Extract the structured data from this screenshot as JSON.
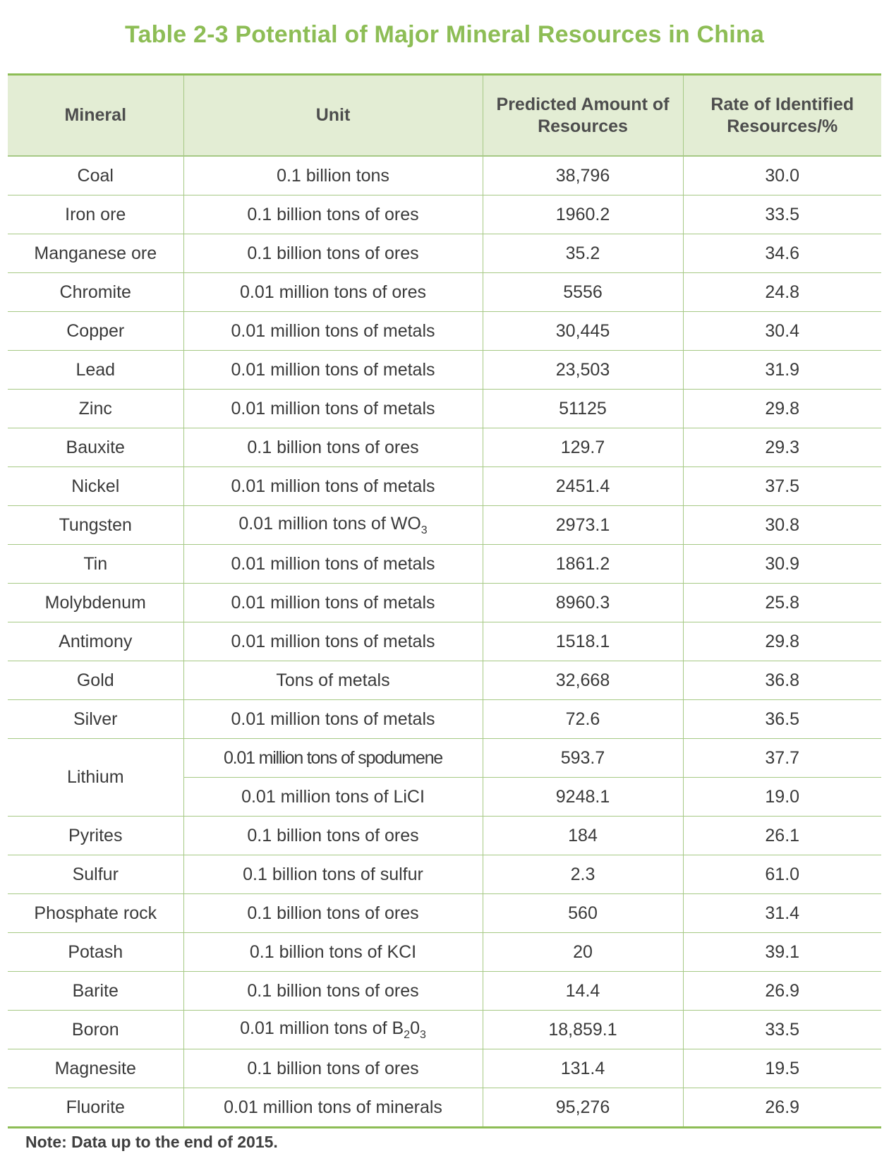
{
  "title": "Table 2-3 Potential of Major Mineral Resources in China",
  "headers": {
    "mineral": "Mineral",
    "unit": "Unit",
    "predicted": "Predicted Amount of Resources",
    "rate": "Rate of Identified Resources/%"
  },
  "rows": [
    {
      "mineral": "Coal",
      "unit": "0.1 billion tons",
      "predicted": "38,796",
      "rate": "30.0"
    },
    {
      "mineral": "Iron ore",
      "unit": "0.1 billion tons of ores",
      "predicted": "1960.2",
      "rate": "33.5"
    },
    {
      "mineral": "Manganese ore",
      "unit": "0.1 billion tons of ores",
      "predicted": "35.2",
      "rate": "34.6"
    },
    {
      "mineral": "Chromite",
      "unit": "0.01 million tons of ores",
      "predicted": "5556",
      "rate": "24.8"
    },
    {
      "mineral": "Copper",
      "unit": "0.01 million tons of metals",
      "predicted": "30,445",
      "rate": "30.4"
    },
    {
      "mineral": "Lead",
      "unit": "0.01 million tons of metals",
      "predicted": "23,503",
      "rate": "31.9"
    },
    {
      "mineral": "Zinc",
      "unit": "0.01 million tons of metals",
      "predicted": "51125",
      "rate": "29.8"
    },
    {
      "mineral": "Bauxite",
      "unit": "0.1 billion tons of ores",
      "predicted": "129.7",
      "rate": "29.3"
    },
    {
      "mineral": "Nickel",
      "unit": "0.01 million tons of metals",
      "predicted": "2451.4",
      "rate": "37.5"
    },
    {
      "mineral": "Tungsten",
      "unit_prefix": "0.01 million tons of WO",
      "unit_sub": "3",
      "predicted": "2973.1",
      "rate": "30.8"
    },
    {
      "mineral": "Tin",
      "unit": "0.01 million tons of metals",
      "predicted": "1861.2",
      "rate": "30.9"
    },
    {
      "mineral": "Molybdenum",
      "unit": "0.01 million tons of metals",
      "predicted": "8960.3",
      "rate": "25.8"
    },
    {
      "mineral": "Antimony",
      "unit": "0.01 million tons of metals",
      "predicted": "1518.1",
      "rate": "29.8"
    },
    {
      "mineral": "Gold",
      "unit": "Tons of metals",
      "predicted": "32,668",
      "rate": "36.8"
    },
    {
      "mineral": "Silver",
      "unit": "0.01 million tons of metals",
      "predicted": "72.6",
      "rate": "36.5"
    },
    {
      "mineral": "Lithium",
      "unit": "0.01 million tons of spodumene",
      "predicted": "593.7",
      "rate": "37.7"
    },
    {
      "unit": "0.01 million tons of LiCI",
      "predicted": "9248.1",
      "rate": "19.0"
    },
    {
      "mineral": "Pyrites",
      "unit": "0.1 billion tons of ores",
      "predicted": "184",
      "rate": "26.1"
    },
    {
      "mineral": "Sulfur",
      "unit": "0.1 billion tons of sulfur",
      "predicted": "2.3",
      "rate": "61.0"
    },
    {
      "mineral": "Phosphate rock",
      "unit": "0.1 billion tons of ores",
      "predicted": "560",
      "rate": "31.4"
    },
    {
      "mineral": "Potash",
      "unit": "0.1 billion tons of KCI",
      "predicted": "20",
      "rate": "39.1"
    },
    {
      "mineral": "Barite",
      "unit": "0.1 billion tons of ores",
      "predicted": "14.4",
      "rate": "26.9"
    },
    {
      "mineral": "Boron",
      "unit_prefix": "0.01 million tons of B",
      "unit_sub": "2",
      "unit_mid": "0",
      "unit_sub2": "3",
      "predicted": "18,859.1",
      "rate": "33.5"
    },
    {
      "mineral": "Magnesite",
      "unit": "0.1 billion tons of ores",
      "predicted": "131.4",
      "rate": "19.5"
    },
    {
      "mineral": "Fluorite",
      "unit": "0.01 million tons of minerals",
      "predicted": "95,276",
      "rate": "26.9"
    }
  ],
  "note": "Note: Data up to the end of 2015."
}
